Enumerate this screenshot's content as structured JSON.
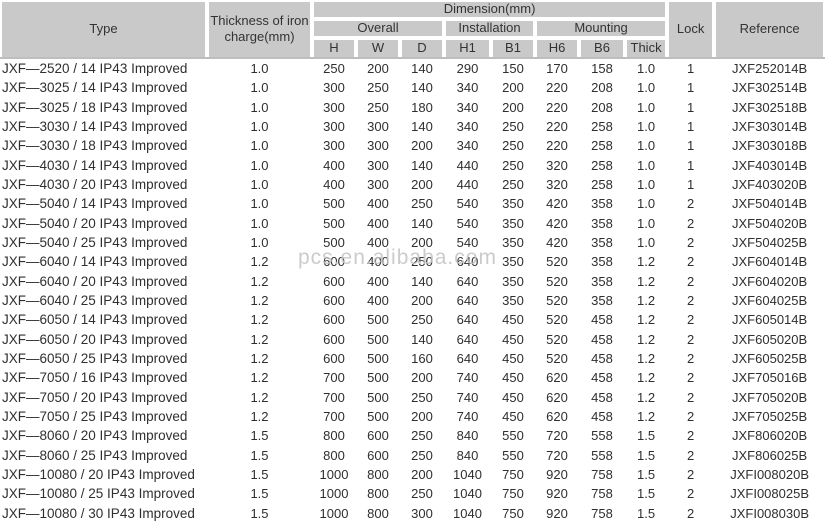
{
  "page": {
    "watermark": "pcs.en.alibaba.com"
  },
  "colors": {
    "header_bg": "#c9c9c9",
    "header_divider": "#a8a8a8",
    "body_text": "#2f2f2f",
    "header_text": "#333333",
    "watermark": "#c3c3c3"
  },
  "table": {
    "headers": {
      "type": "Type",
      "thickness": "Thickness of iron charge(mm)",
      "dimension": "Dimension(mm)",
      "overall": "Overall",
      "installation": "Installation",
      "mounting": "Mounting",
      "sub": [
        "H",
        "W",
        "D",
        "H1",
        "B1",
        "H6",
        "B6",
        "Thick"
      ],
      "lock": "Lock",
      "reference": "Reference"
    },
    "rows": [
      [
        "JXF—2520 / 14 IP43 Improved",
        "1.0",
        "250",
        "200",
        "140",
        "290",
        "150",
        "170",
        "158",
        "1.0",
        "1",
        "JXF252014B"
      ],
      [
        "JXF—3025 / 14 IP43 Improved",
        "1.0",
        "300",
        "250",
        "140",
        "340",
        "200",
        "220",
        "208",
        "1.0",
        "1",
        "JXF302514B"
      ],
      [
        "JXF—3025 / 18 IP43 Improved",
        "1.0",
        "300",
        "250",
        "180",
        "340",
        "200",
        "220",
        "208",
        "1.0",
        "1",
        "JXF302518B"
      ],
      [
        "JXF—3030 / 14 IP43 Improved",
        "1.0",
        "300",
        "300",
        "140",
        "340",
        "250",
        "220",
        "258",
        "1.0",
        "1",
        "JXF303014B"
      ],
      [
        "JXF—3030 / 18 IP43 Improved",
        "1.0",
        "300",
        "300",
        "200",
        "340",
        "250",
        "220",
        "258",
        "1.0",
        "1",
        "JXF303018B"
      ],
      [
        "JXF—4030 / 14 IP43 Improved",
        "1.0",
        "400",
        "300",
        "140",
        "440",
        "250",
        "320",
        "258",
        "1.0",
        "1",
        "JXF403014B"
      ],
      [
        "JXF—4030 / 20 IP43 Improved",
        "1.0",
        "400",
        "300",
        "200",
        "440",
        "250",
        "320",
        "258",
        "1.0",
        "1",
        "JXF403020B"
      ],
      [
        "JXF—5040 / 14 IP43 Improved",
        "1.0",
        "500",
        "400",
        "250",
        "540",
        "350",
        "420",
        "358",
        "1.0",
        "2",
        "JXF504014B"
      ],
      [
        "JXF—5040 / 20 IP43 Improved",
        "1.0",
        "500",
        "400",
        "140",
        "540",
        "350",
        "420",
        "358",
        "1.0",
        "2",
        "JXF504020B"
      ],
      [
        "JXF—5040 / 25 IP43 Improved",
        "1.0",
        "500",
        "400",
        "200",
        "540",
        "350",
        "420",
        "358",
        "1.0",
        "2",
        "JXF504025B"
      ],
      [
        "JXF—6040 / 14 IP43 Improved",
        "1.2",
        "600",
        "400",
        "250",
        "640",
        "350",
        "520",
        "358",
        "1.2",
        "2",
        "JXF604014B"
      ],
      [
        "JXF—6040 / 20 IP43 Improved",
        "1.2",
        "600",
        "400",
        "140",
        "640",
        "350",
        "520",
        "358",
        "1.2",
        "2",
        "JXF604020B"
      ],
      [
        "JXF—6040 / 25 IP43 Improved",
        "1.2",
        "600",
        "400",
        "200",
        "640",
        "350",
        "520",
        "358",
        "1.2",
        "2",
        "JXF604025B"
      ],
      [
        "JXF—6050 / 14 IP43 Improved",
        "1.2",
        "600",
        "500",
        "250",
        "640",
        "450",
        "520",
        "458",
        "1.2",
        "2",
        "JXF605014B"
      ],
      [
        "JXF—6050 / 20 IP43 Improved",
        "1.2",
        "600",
        "500",
        "140",
        "640",
        "450",
        "520",
        "458",
        "1.2",
        "2",
        "JXF605020B"
      ],
      [
        "JXF—6050 / 25 IP43 Improved",
        "1.2",
        "600",
        "500",
        "160",
        "640",
        "450",
        "520",
        "458",
        "1.2",
        "2",
        "JXF605025B"
      ],
      [
        "JXF—7050 / 16 IP43 Improved",
        "1.2",
        "700",
        "500",
        "200",
        "740",
        "450",
        "620",
        "458",
        "1.2",
        "2",
        "JXF705016B"
      ],
      [
        "JXF—7050 / 20 IP43 Improved",
        "1.2",
        "700",
        "500",
        "250",
        "740",
        "450",
        "620",
        "458",
        "1.2",
        "2",
        "JXF705020B"
      ],
      [
        "JXF—7050 / 25 IP43 Improved",
        "1.2",
        "700",
        "500",
        "200",
        "740",
        "450",
        "620",
        "458",
        "1.2",
        "2",
        "JXF705025B"
      ],
      [
        "JXF—8060 / 20 IP43 Improved",
        "1.5",
        "800",
        "600",
        "250",
        "840",
        "550",
        "720",
        "558",
        "1.5",
        "2",
        "JXF806020B"
      ],
      [
        "JXF—8060 / 25 IP43 Improved",
        "1.5",
        "800",
        "600",
        "250",
        "840",
        "550",
        "720",
        "558",
        "1.5",
        "2",
        "JXF806025B"
      ],
      [
        "JXF—10080 / 20 IP43 Improved",
        "1.5",
        "1000",
        "800",
        "200",
        "1040",
        "750",
        "920",
        "758",
        "1.5",
        "2",
        "JXFI008020B"
      ],
      [
        "JXF—10080 / 25 IP43 Improved",
        "1.5",
        "1000",
        "800",
        "250",
        "1040",
        "750",
        "920",
        "758",
        "1.5",
        "2",
        "JXFI008025B"
      ],
      [
        "JXF—10080 / 30 IP43 Improved",
        "1.5",
        "1000",
        "800",
        "300",
        "1040",
        "750",
        "920",
        "758",
        "1.5",
        "2",
        "JXFI008030B"
      ]
    ]
  }
}
